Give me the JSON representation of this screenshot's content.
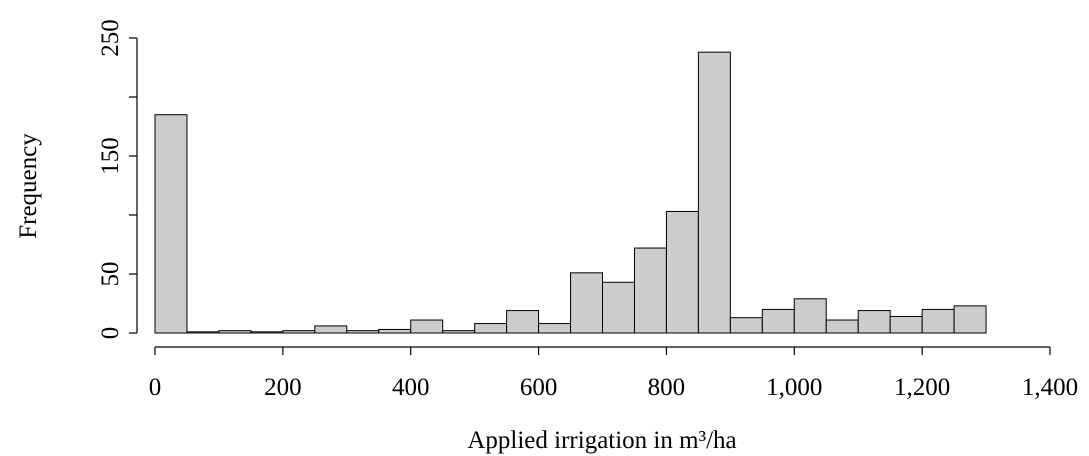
{
  "chart_data": {
    "type": "histogram",
    "xlabel": "Applied irrigation in m³/ha",
    "ylabel": "Frequency",
    "bins": [
      0,
      50,
      100,
      150,
      200,
      250,
      300,
      350,
      400,
      450,
      500,
      550,
      600,
      650,
      700,
      750,
      800,
      850,
      900,
      950,
      1000,
      1050,
      1100,
      1150,
      1200,
      1250,
      1300
    ],
    "counts": [
      185,
      1,
      2,
      1,
      2,
      6,
      2,
      3,
      11,
      2,
      8,
      19,
      8,
      51,
      43,
      72,
      103,
      238,
      13,
      20,
      29,
      11,
      19,
      14,
      20,
      23
    ],
    "color": "#cccccc",
    "xlim": [
      0,
      1400
    ],
    "xticks": [
      0,
      200,
      400,
      600,
      800,
      {
        "value": 1000,
        "label": "1,000"
      },
      {
        "value": 1200,
        "label": "1,200"
      },
      {
        "value": 1400,
        "label": "1,400"
      }
    ],
    "ylim": [
      0,
      250
    ],
    "yticks": [
      0,
      50,
      {
        "value": 100,
        "label": null
      },
      150,
      {
        "value": 200,
        "label": null
      },
      250
    ]
  }
}
